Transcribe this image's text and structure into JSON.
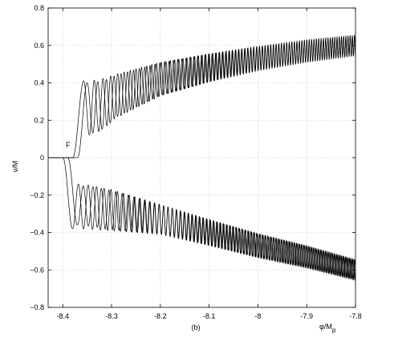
{
  "chart_data": {
    "type": "line",
    "xlabel": "φ/M",
    "xlabel_subscript": "p",
    "ylabel": "ν/M",
    "caption": "(b)",
    "annotation": "F",
    "xlim": [
      -8.43,
      -7.8
    ],
    "ylim": [
      -0.8,
      0.8
    ],
    "x_ticks": [
      -8.4,
      -8.3,
      -8.2,
      -8.1,
      -8.0,
      -7.9,
      -7.8
    ],
    "x_tick_labels": [
      "-8.4",
      "-8.3",
      "-8.2",
      "-8.1",
      "-8",
      "-7.9",
      "-7.8"
    ],
    "y_ticks": [
      -0.8,
      -0.6,
      -0.4,
      -0.2,
      0,
      0.2,
      0.4,
      0.6,
      0.8
    ],
    "y_tick_labels": [
      "−0.8",
      "−0.6",
      "−0.4",
      "−0.2",
      "0",
      "0.2",
      "0.4",
      "0.6",
      "0.8"
    ],
    "grid": true,
    "series": [
      {
        "branch": "upper",
        "sign": 1,
        "onset_x": -8.38,
        "rise_end_x": -8.357,
        "first_max": 0.41,
        "first_min": 0.12,
        "trend_x": [
          -8.357,
          -8.3,
          -8.2,
          -8.1,
          -8.0,
          -7.9,
          -7.8
        ],
        "trend_mid": [
          0.26,
          0.32,
          0.42,
          0.48,
          0.53,
          0.57,
          0.6
        ],
        "trend_amp": [
          0.15,
          0.12,
          0.09,
          0.075,
          0.065,
          0.06,
          0.055
        ],
        "freq_start": 40,
        "freq_end": 230,
        "color": "#000000"
      },
      {
        "branch": "upper",
        "sign": 1,
        "onset_x": -8.37,
        "rise_end_x": -8.35,
        "first_max": 0.4,
        "first_min": 0.13,
        "trend_x": [
          -8.35,
          -8.3,
          -8.2,
          -8.1,
          -8.0,
          -7.9,
          -7.8
        ],
        "trend_mid": [
          0.26,
          0.32,
          0.42,
          0.48,
          0.53,
          0.57,
          0.6
        ],
        "trend_amp": [
          0.14,
          0.115,
          0.088,
          0.074,
          0.064,
          0.058,
          0.053
        ],
        "freq_start": 40,
        "freq_end": 230,
        "color": "#000000"
      },
      {
        "branch": "lower",
        "sign": -1,
        "onset_x": -8.4,
        "rise_end_x": -8.38,
        "first_max": 0.38,
        "first_min": 0.14,
        "trend_x": [
          -8.38,
          -8.3,
          -8.2,
          -8.1,
          -8.0,
          -7.9,
          -7.8
        ],
        "trend_mid": [
          0.26,
          0.28,
          0.33,
          0.4,
          0.47,
          0.53,
          0.6
        ],
        "trend_amp": [
          0.12,
          0.11,
          0.08,
          0.07,
          0.065,
          0.06,
          0.055
        ],
        "freq_start": 38,
        "freq_end": 230,
        "color": "#000000"
      },
      {
        "branch": "lower",
        "sign": -1,
        "onset_x": -8.39,
        "rise_end_x": -8.37,
        "first_max": 0.36,
        "first_min": 0.15,
        "trend_x": [
          -8.37,
          -8.3,
          -8.2,
          -8.1,
          -8.0,
          -7.9,
          -7.8
        ],
        "trend_mid": [
          0.26,
          0.28,
          0.33,
          0.4,
          0.47,
          0.53,
          0.6
        ],
        "trend_amp": [
          0.11,
          0.105,
          0.078,
          0.068,
          0.063,
          0.058,
          0.053
        ],
        "freq_start": 38,
        "freq_end": 230,
        "color": "#000000"
      }
    ]
  }
}
